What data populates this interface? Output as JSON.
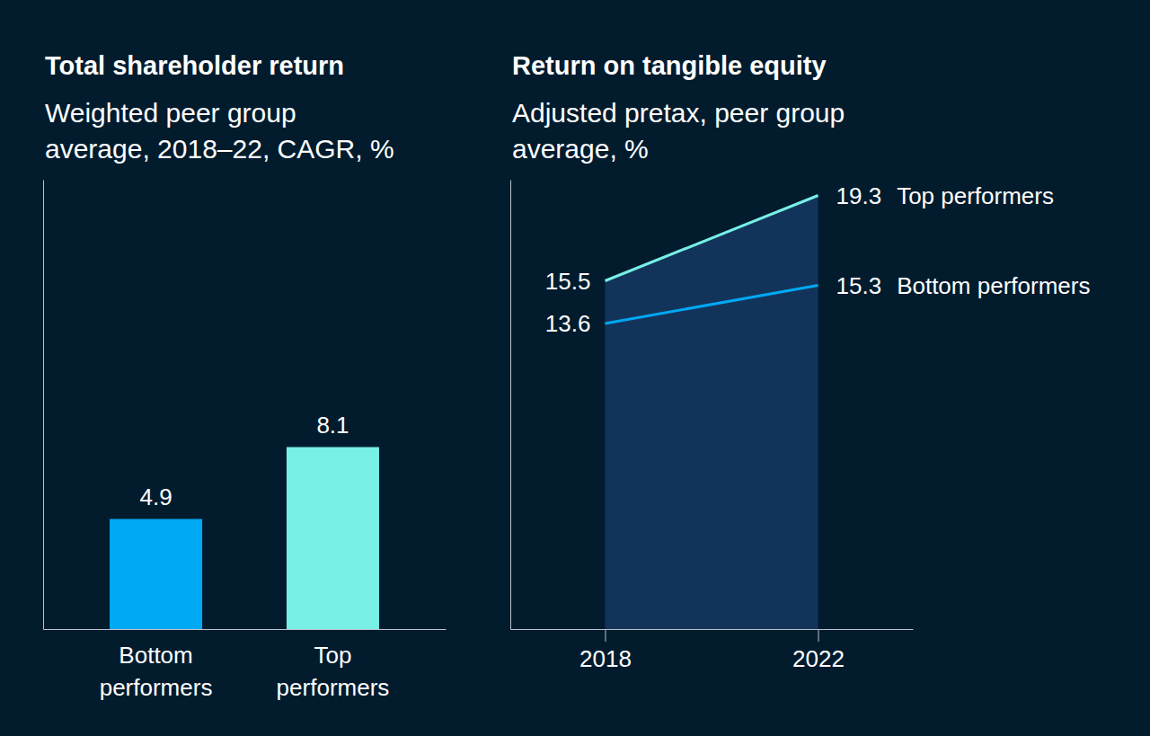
{
  "chart_data": [
    {
      "type": "bar",
      "title": "Total shareholder return",
      "subtitle": "Weighted peer group average, 2018–22, CAGR, %",
      "categories": [
        "Bottom performers",
        "Top performers"
      ],
      "values": [
        4.9,
        8.1
      ],
      "colors": [
        "#00a9f4",
        "#78f0e6"
      ],
      "ylim": [
        0,
        20
      ],
      "yticks": [],
      "data_labels": true,
      "tick_labels": "x"
    },
    {
      "type": "line",
      "title": "Return on tangible equity",
      "subtitle": "Adjusted pretax, peer group average, %",
      "categories": [
        "2018",
        "2022"
      ],
      "series": [
        {
          "name": "Top performers",
          "type": "area",
          "color": "#78f0e6",
          "values": [
            15.5,
            19.3
          ]
        },
        {
          "name": "Bottom performers",
          "type": "line",
          "color": "#00a9f4",
          "values": [
            13.6,
            15.3
          ]
        }
      ],
      "ylim": [
        0,
        20
      ],
      "yticks": [],
      "data_labels": true,
      "tick_labels": "x"
    }
  ]
}
